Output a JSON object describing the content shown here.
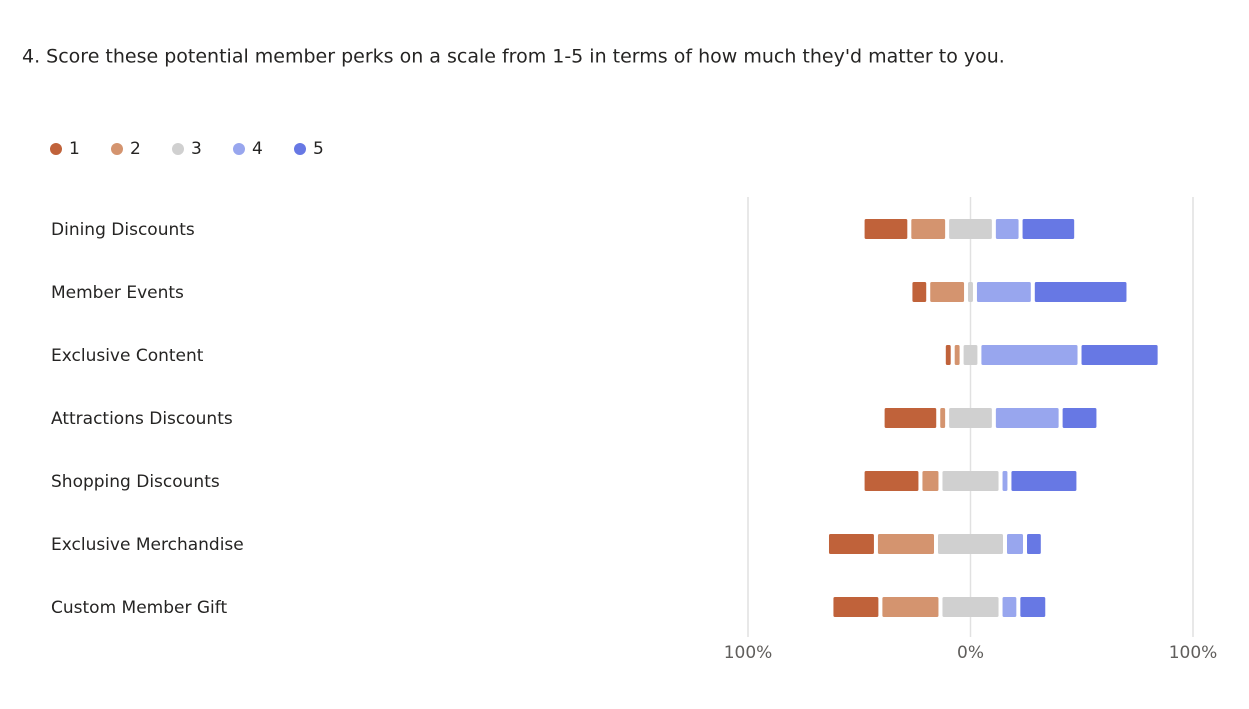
{
  "chart_data": {
    "type": "diverging-bar",
    "title": "4. Score these potential member perks on a scale from 1-5 in terms of how much they'd matter to you.",
    "categories": [
      "Dining Discounts",
      "Member Events",
      "Exclusive Content",
      "Attractions Discounts",
      "Shopping Discounts",
      "Exclusive Merchandise",
      "Custom Member Gift"
    ],
    "series": [
      {
        "name": "1",
        "color": "#c0623a",
        "values": [
          21,
          8,
          4,
          25,
          26,
          22,
          22
        ]
      },
      {
        "name": "2",
        "color": "#d4946f",
        "values": [
          17,
          17,
          4,
          4,
          9,
          27,
          27
        ]
      },
      {
        "name": "3",
        "color": "#d0d0d0",
        "values": [
          21,
          4,
          8,
          21,
          27,
          31,
          27
        ]
      },
      {
        "name": "4",
        "color": "#98a6ee",
        "values": [
          12,
          26,
          45,
          30,
          4,
          9,
          8
        ]
      },
      {
        "name": "5",
        "color": "#6778e4",
        "values": [
          25,
          43,
          36,
          17,
          31,
          8,
          13
        ]
      }
    ],
    "neutral_series": 2,
    "xlim": [
      -100,
      100
    ],
    "xticks": [
      {
        "value": -100,
        "label": "100%"
      },
      {
        "value": 0,
        "label": "0%"
      },
      {
        "value": 100,
        "label": "100%"
      }
    ],
    "grid": true,
    "legend": "top-left"
  }
}
